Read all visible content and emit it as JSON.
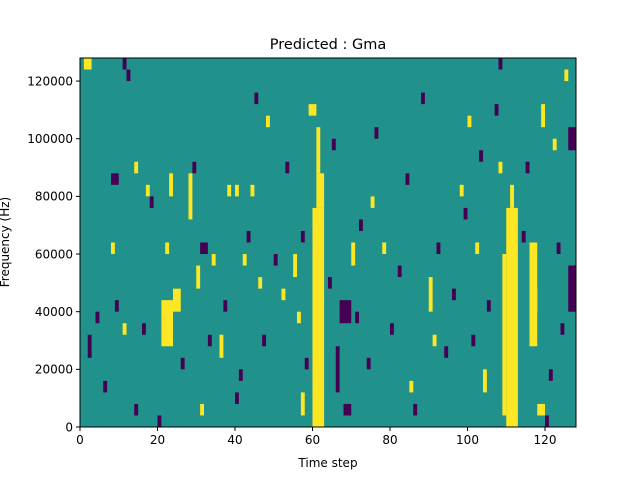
{
  "chart_data": {
    "type": "heatmap",
    "title": "Predicted : Gma",
    "xlabel": "Time step",
    "ylabel": "Frequency (Hz)",
    "xlim": [
      0,
      128
    ],
    "ylim": [
      0,
      128000
    ],
    "x_ticks": [
      0,
      20,
      40,
      60,
      80,
      100,
      120
    ],
    "y_ticks": [
      0,
      20000,
      40000,
      60000,
      80000,
      100000,
      120000
    ],
    "y_tick_labels": [
      "0",
      "20000",
      "40000",
      "60000",
      "80000",
      "100000",
      "120000"
    ],
    "grid": false,
    "legend": "none",
    "colors": {
      "background": "#21918c",
      "high": "#fde725",
      "low": "#440154"
    },
    "value_scale": {
      "background": 0,
      "high": 1,
      "low": -1
    },
    "cell_height_hz": 4000,
    "notes_on_cells": "Each cell is [time_step_start, time_step_end, freq_start_hz, freq_end_hz]",
    "high_cells": [
      [
        60,
        63,
        0,
        76000
      ],
      [
        61,
        63,
        76000,
        88000
      ],
      [
        61,
        62,
        88000,
        104000
      ],
      [
        59,
        61,
        108000,
        112000
      ],
      [
        110,
        113,
        0,
        76000
      ],
      [
        109,
        110,
        4000,
        60000
      ],
      [
        111,
        112,
        76000,
        84000
      ],
      [
        108,
        109,
        88000,
        92000
      ],
      [
        21,
        24,
        28000,
        44000
      ],
      [
        24,
        26,
        40000,
        48000
      ],
      [
        22,
        23,
        60000,
        64000
      ],
      [
        23,
        24,
        80000,
        88000
      ],
      [
        116,
        118,
        28000,
        64000
      ],
      [
        117,
        118,
        40000,
        48000
      ],
      [
        118,
        120,
        4000,
        8000
      ],
      [
        119,
        120,
        104000,
        112000
      ],
      [
        1,
        3,
        124000,
        128000
      ],
      [
        28,
        29,
        72000,
        88000
      ],
      [
        30,
        31,
        48000,
        56000
      ],
      [
        34,
        35,
        56000,
        60000
      ],
      [
        38,
        39,
        80000,
        84000
      ],
      [
        40,
        41,
        80000,
        84000
      ],
      [
        44,
        45,
        80000,
        84000
      ],
      [
        46,
        47,
        48000,
        52000
      ],
      [
        48,
        49,
        104000,
        108000
      ],
      [
        55,
        56,
        52000,
        60000
      ],
      [
        57,
        58,
        4000,
        12000
      ],
      [
        56,
        57,
        36000,
        40000
      ],
      [
        85,
        86,
        12000,
        16000
      ],
      [
        90,
        91,
        40000,
        52000
      ],
      [
        104,
        105,
        12000,
        20000
      ],
      [
        98,
        99,
        80000,
        84000
      ],
      [
        100,
        101,
        104000,
        108000
      ],
      [
        102,
        103,
        60000,
        64000
      ],
      [
        122,
        123,
        96000,
        100000
      ],
      [
        125,
        126,
        120000,
        124000
      ],
      [
        14,
        15,
        88000,
        92000
      ],
      [
        17,
        18,
        80000,
        84000
      ],
      [
        11,
        12,
        32000,
        36000
      ],
      [
        8,
        9,
        60000,
        64000
      ],
      [
        31,
        32,
        4000,
        8000
      ],
      [
        36,
        37,
        24000,
        32000
      ],
      [
        42,
        43,
        56000,
        60000
      ],
      [
        52,
        53,
        44000,
        48000
      ],
      [
        70,
        71,
        56000,
        64000
      ],
      [
        75,
        76,
        76000,
        80000
      ],
      [
        78,
        79,
        60000,
        64000
      ],
      [
        91,
        92,
        28000,
        32000
      ]
    ],
    "low_cells": [
      [
        8,
        10,
        84000,
        88000
      ],
      [
        31,
        33,
        60000,
        64000
      ],
      [
        67,
        70,
        36000,
        44000
      ],
      [
        68,
        70,
        4000,
        8000
      ],
      [
        66,
        67,
        12000,
        28000
      ],
      [
        126,
        128,
        40000,
        56000
      ],
      [
        126,
        128,
        96000,
        104000
      ],
      [
        2,
        3,
        24000,
        32000
      ],
      [
        4,
        5,
        36000,
        40000
      ],
      [
        6,
        7,
        12000,
        16000
      ],
      [
        9,
        10,
        40000,
        44000
      ],
      [
        12,
        13,
        120000,
        124000
      ],
      [
        14,
        15,
        4000,
        8000
      ],
      [
        16,
        17,
        32000,
        36000
      ],
      [
        18,
        19,
        76000,
        80000
      ],
      [
        20,
        21,
        0,
        4000
      ],
      [
        26,
        27,
        20000,
        24000
      ],
      [
        29,
        30,
        88000,
        92000
      ],
      [
        33,
        34,
        28000,
        32000
      ],
      [
        37,
        38,
        40000,
        44000
      ],
      [
        41,
        42,
        16000,
        20000
      ],
      [
        43,
        44,
        64000,
        68000
      ],
      [
        45,
        46,
        112000,
        116000
      ],
      [
        47,
        48,
        28000,
        32000
      ],
      [
        50,
        51,
        56000,
        60000
      ],
      [
        53,
        54,
        88000,
        92000
      ],
      [
        58,
        59,
        20000,
        24000
      ],
      [
        64,
        65,
        48000,
        52000
      ],
      [
        65,
        66,
        96000,
        100000
      ],
      [
        71,
        72,
        36000,
        40000
      ],
      [
        72,
        73,
        68000,
        72000
      ],
      [
        74,
        75,
        20000,
        24000
      ],
      [
        76,
        77,
        100000,
        104000
      ],
      [
        80,
        81,
        32000,
        36000
      ],
      [
        82,
        83,
        52000,
        56000
      ],
      [
        84,
        85,
        84000,
        88000
      ],
      [
        86,
        87,
        4000,
        8000
      ],
      [
        88,
        89,
        112000,
        116000
      ],
      [
        92,
        93,
        60000,
        64000
      ],
      [
        94,
        95,
        24000,
        28000
      ],
      [
        96,
        97,
        44000,
        48000
      ],
      [
        99,
        100,
        72000,
        76000
      ],
      [
        101,
        102,
        28000,
        32000
      ],
      [
        103,
        104,
        92000,
        96000
      ],
      [
        105,
        106,
        40000,
        44000
      ],
      [
        107,
        108,
        108000,
        112000
      ],
      [
        114,
        115,
        64000,
        68000
      ],
      [
        115,
        116,
        88000,
        92000
      ],
      [
        120,
        121,
        0,
        4000
      ],
      [
        121,
        122,
        16000,
        20000
      ],
      [
        123,
        124,
        60000,
        64000
      ],
      [
        124,
        125,
        32000,
        36000
      ],
      [
        11,
        12,
        124000,
        128000
      ],
      [
        108,
        109,
        124000,
        128000
      ],
      [
        40,
        41,
        8000,
        12000
      ],
      [
        57,
        58,
        64000,
        68000
      ]
    ]
  }
}
